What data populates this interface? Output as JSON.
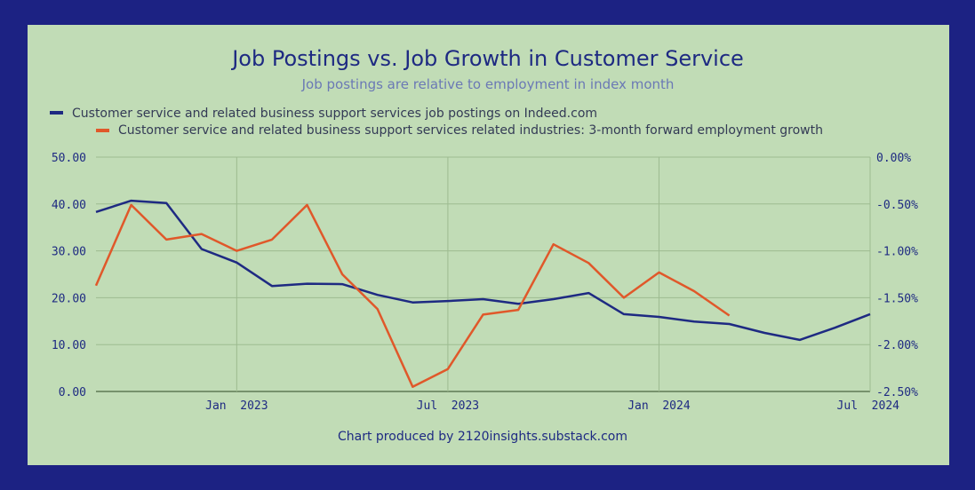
{
  "chart_data": {
    "type": "line",
    "title": "Job Postings vs. Job Growth in Customer Service",
    "subtitle": "Job postings are relative to employment in index month",
    "caption": "Chart produced by 2120insights.substack.com",
    "legend_position": "top-left",
    "grid": true,
    "x_range": [
      "2022-09",
      "2024-07"
    ],
    "x_ticks": [
      {
        "label": "Jan  2023",
        "x": "2023-01"
      },
      {
        "label": "Jul  2023",
        "x": "2023-07"
      },
      {
        "label": "Jan  2024",
        "x": "2024-01"
      },
      {
        "label": "Jul  2024",
        "x": "2024-07"
      }
    ],
    "y_left": {
      "range": [
        0,
        50
      ],
      "ticks": [
        "0.00",
        "10.00",
        "20.00",
        "30.00",
        "40.00",
        "50.00"
      ]
    },
    "y_right": {
      "range": [
        -2.5,
        0
      ],
      "ticks": [
        "-2.50%",
        "-2.00%",
        "-1.50%",
        "-1.00%",
        "-0.50%",
        "0.00%"
      ]
    },
    "series": [
      {
        "name": "Customer service and related business support services job postings on Indeed.com",
        "axis": "left",
        "color": "#1e2a82",
        "x": [
          "2022-09",
          "2022-10",
          "2022-11",
          "2022-12",
          "2023-01",
          "2023-02",
          "2023-03",
          "2023-04",
          "2023-05",
          "2023-06",
          "2023-07",
          "2023-08",
          "2023-09",
          "2023-10",
          "2023-11",
          "2023-12",
          "2024-01",
          "2024-02",
          "2024-03",
          "2024-04",
          "2024-05",
          "2024-06",
          "2024-07"
        ],
        "values": [
          38.3,
          40.7,
          40.2,
          30.4,
          27.5,
          22.5,
          23.0,
          22.9,
          20.6,
          19.0,
          19.3,
          19.7,
          18.7,
          19.7,
          21.0,
          16.5,
          15.9,
          14.9,
          14.4,
          12.5,
          11.0,
          13.6,
          16.5
        ]
      },
      {
        "name": "Customer service and related business support services related industries: 3-month forward employment growth",
        "axis": "right",
        "color": "#e0582a",
        "x": [
          "2022-09",
          "2022-10",
          "2022-11",
          "2022-12",
          "2023-01",
          "2023-02",
          "2023-03",
          "2023-04",
          "2023-05",
          "2023-06",
          "2023-07",
          "2023-08",
          "2023-09",
          "2023-10",
          "2023-11",
          "2023-12",
          "2024-01",
          "2024-02",
          "2024-03"
        ],
        "values": [
          -1.37,
          -0.51,
          -0.88,
          -0.82,
          -1.0,
          -0.88,
          -0.51,
          -1.25,
          -1.62,
          -2.45,
          -2.26,
          -1.68,
          -1.63,
          -0.93,
          -1.13,
          -1.5,
          -1.23,
          -1.43,
          -1.69
        ]
      }
    ]
  }
}
